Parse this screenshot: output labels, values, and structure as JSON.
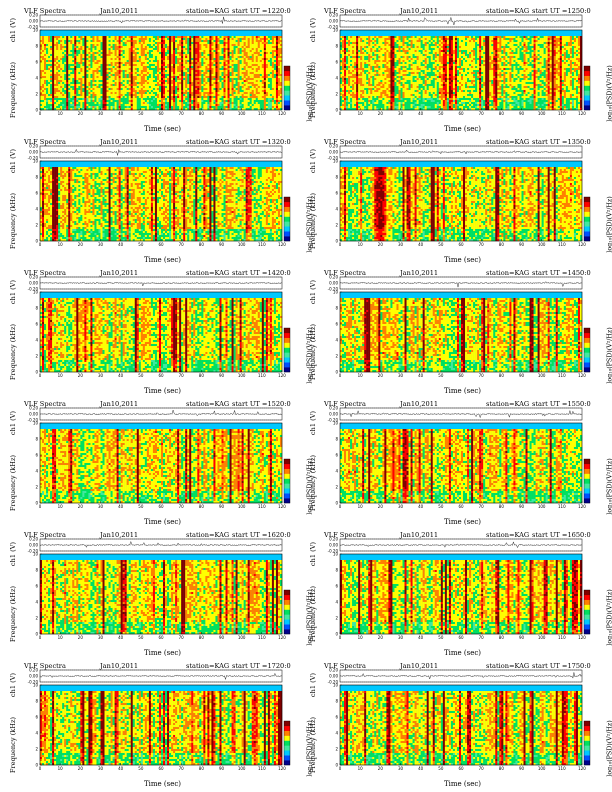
{
  "common": {
    "title_left": "VLF Spectra",
    "station": "station=KAG",
    "x_label": "Time  (sec)",
    "y_top_label": "ch1 (V)",
    "y_label": "Frequency  (kHz)",
    "colorbar_label": "log₁₀(PSD)(V²/Hz)",
    "top_y_ticks": [
      "0.20",
      "0.00",
      "-0.20"
    ],
    "x_ticks": [
      "0",
      "10",
      "20",
      "30",
      "40",
      "50",
      "60",
      "70",
      "80",
      "90",
      "100",
      "110",
      "120"
    ],
    "y_ticks": [
      "0",
      "2",
      "4",
      "6",
      "8",
      "10"
    ]
  },
  "panels": [
    {
      "date": "Jan10,2011",
      "start": "start  UT  =1220:0"
    },
    {
      "date": "Jan10,2011",
      "start": "start  UT  =1250:0"
    },
    {
      "date": "Jan10,2011",
      "start": "start  UT  =1320:0"
    },
    {
      "date": "Jan10,2011",
      "start": "start  UT  =1350:0"
    },
    {
      "date": "Jan10,2011",
      "start": "start  UT  =1420:0"
    },
    {
      "date": "Jan10,2011",
      "start": "start  UT  =1450:0"
    },
    {
      "date": "Jan10,2011",
      "start": "start  UT  =1520:0"
    },
    {
      "date": "Jan10,2011",
      "start": "start  UT  =1550:0"
    },
    {
      "date": "Jan10,2011",
      "start": "start  UT  =1620:0"
    },
    {
      "date": "Jan10,2011",
      "start": "start  UT  =1650:0"
    },
    {
      "date": "Jan10,2011",
      "start": "start  UT  =1720:0"
    },
    {
      "date": "Jan10,2011",
      "start": "start  UT  =1750:0"
    }
  ],
  "chart_data": {
    "type": "heatmap",
    "x_range": [
      0,
      120
    ],
    "y_range": [
      0,
      10
    ],
    "top_trace_range": [
      -0.2,
      0.2
    ],
    "colorscale": [
      "#00008b",
      "#0050ff",
      "#00c8ff",
      "#40e8a0",
      "#00e060",
      "#ffff00",
      "#ff8000",
      "#ff0000",
      "#800000"
    ]
  }
}
